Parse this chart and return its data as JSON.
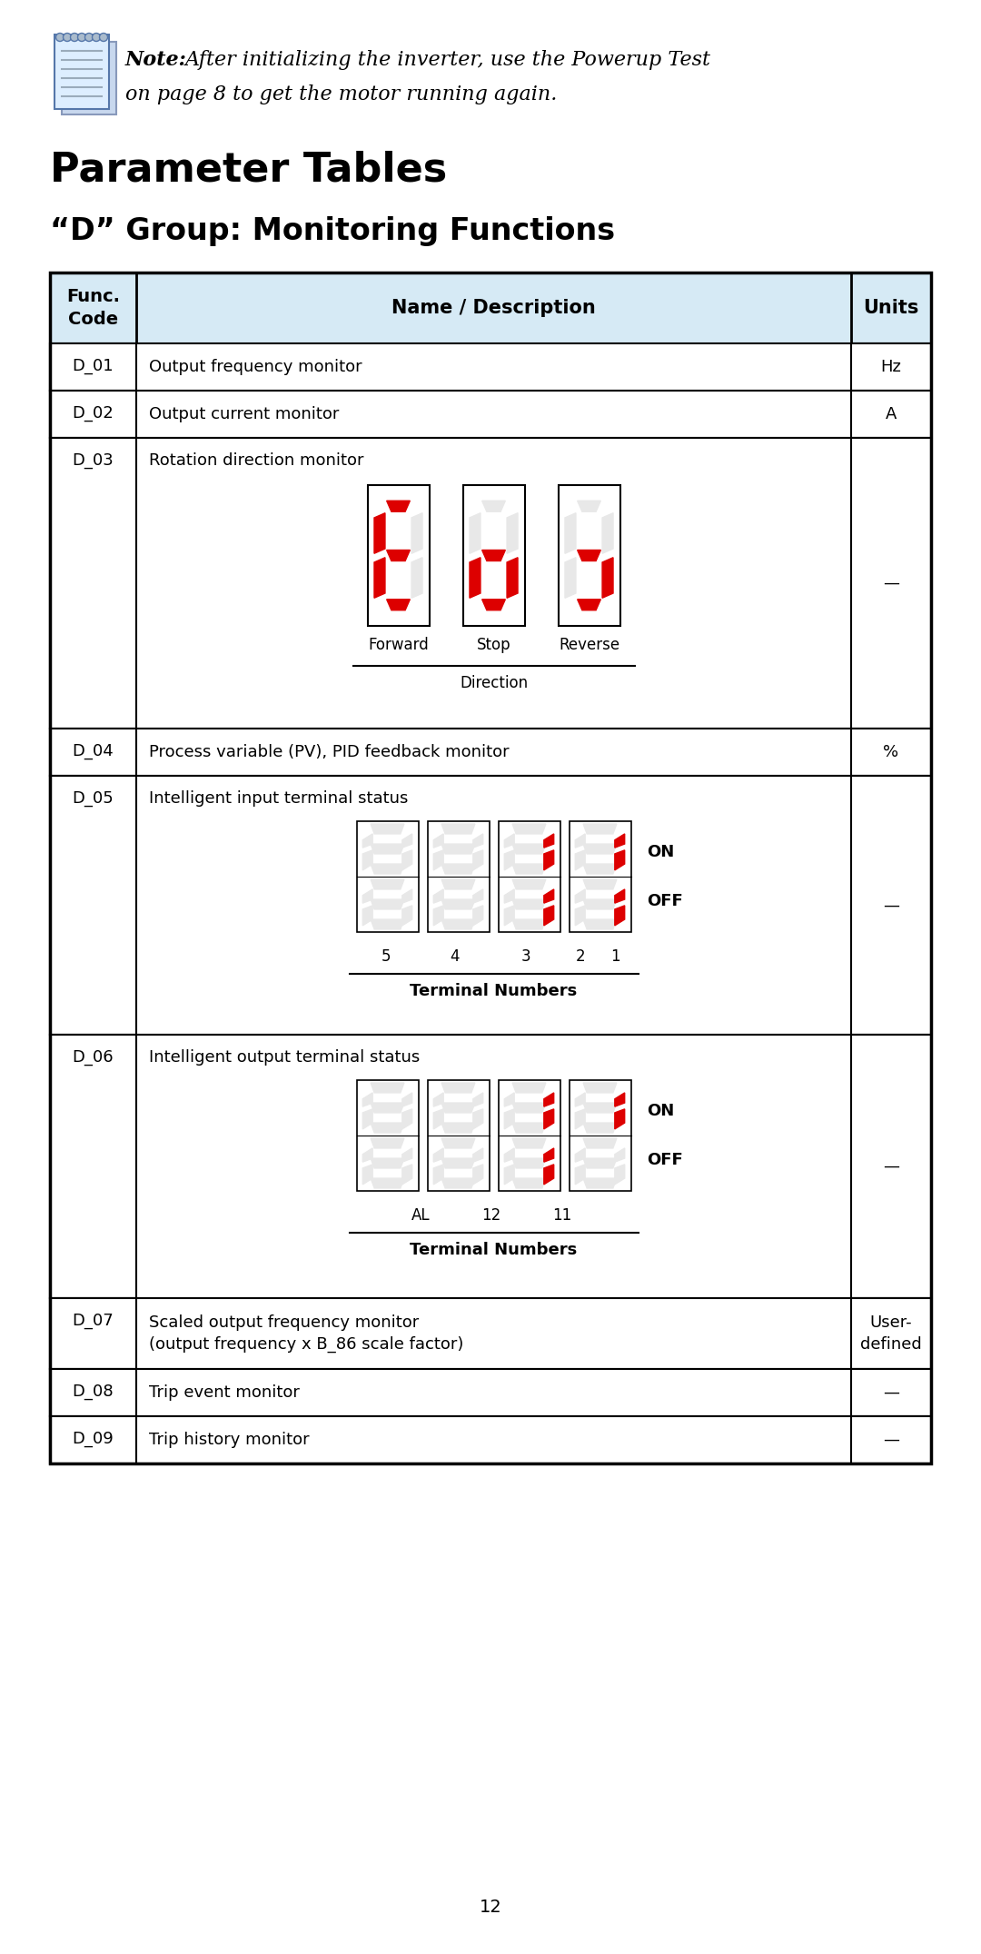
{
  "page_bg": "#ffffff",
  "main_title": "Parameter Tables",
  "subtitle": "“D” Group: Monitoring Functions",
  "header_bg": "#d6eaf5",
  "rows": [
    {
      "code": "D_01",
      "desc": "Output frequency monitor",
      "units": "Hz",
      "has_image": false
    },
    {
      "code": "D_02",
      "desc": "Output current monitor",
      "units": "A",
      "has_image": false
    },
    {
      "code": "D_03",
      "desc": "Rotation direction monitor",
      "units": "—",
      "has_image": "direction"
    },
    {
      "code": "D_04",
      "desc": "Process variable (PV), PID feedback monitor",
      "units": "%",
      "has_image": false
    },
    {
      "code": "D_05",
      "desc": "Intelligent input terminal status",
      "units": "—",
      "has_image": "input_terminal"
    },
    {
      "code": "D_06",
      "desc": "Intelligent output terminal status",
      "units": "—",
      "has_image": "output_terminal"
    },
    {
      "code": "D_07",
      "desc": "Scaled output frequency monitor\n(output frequency x B_86 scale factor)",
      "units": "User-\ndefined",
      "has_image": false
    },
    {
      "code": "D_08",
      "desc": "Trip event monitor",
      "units": "—",
      "has_image": false
    },
    {
      "code": "D_09",
      "desc": "Trip history monitor",
      "units": "—",
      "has_image": false
    }
  ],
  "page_num": "12",
  "red_color": "#dd0000",
  "border_color": "#000000",
  "seg_off_color": "#e8e8e8",
  "note_line1": "After initializing the inverter, use the Powerup Test",
  "note_line2": "on page 8 to get the motor running again."
}
